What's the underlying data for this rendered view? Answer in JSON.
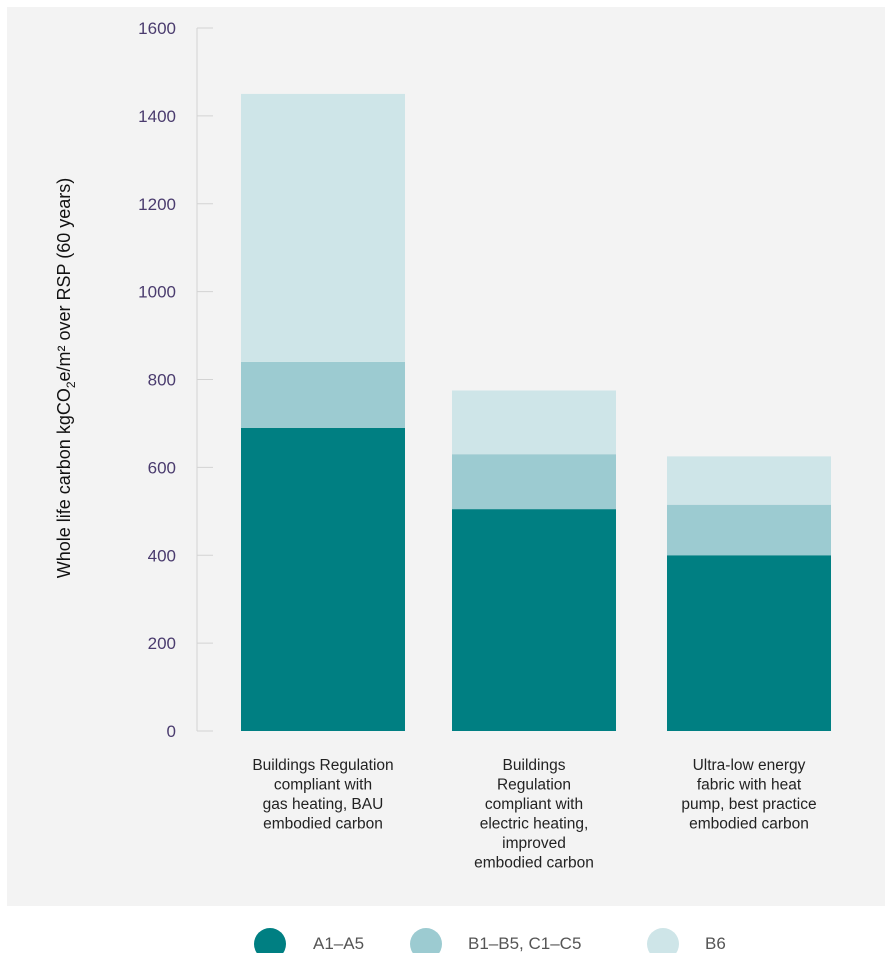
{
  "chart_data": {
    "type": "bar",
    "stacked": true,
    "ylim": [
      0,
      1600
    ],
    "yticks": [
      0,
      200,
      400,
      600,
      800,
      1000,
      1200,
      1400,
      1600
    ],
    "ylabel_parts": [
      "Whole life carbon kgCO",
      "2",
      "e/m² over RSP (60 years)"
    ],
    "categories": [
      {
        "lines": [
          "Buildings Regulation",
          "compliant with",
          "gas heating, BAU",
          "embodied carbon"
        ]
      },
      {
        "lines": [
          "Buildings",
          "Regulation",
          "compliant with",
          "electric heating,",
          "improved",
          "embodied carbon"
        ]
      },
      {
        "lines": [
          "Ultra-low energy",
          "fabric with heat",
          "pump, best practice",
          "embodied carbon"
        ]
      }
    ],
    "series": [
      {
        "name": "A1–A5",
        "color": "#007f82",
        "values": [
          690,
          505,
          400
        ]
      },
      {
        "name": "B1–B5, C1–C5",
        "color": "#9ccbd1",
        "values": [
          150,
          125,
          115
        ]
      },
      {
        "name": "B6",
        "color": "#cee5e8",
        "values": [
          610,
          145,
          110
        ]
      }
    ],
    "legend_position": "bottom-center",
    "grid": false
  }
}
